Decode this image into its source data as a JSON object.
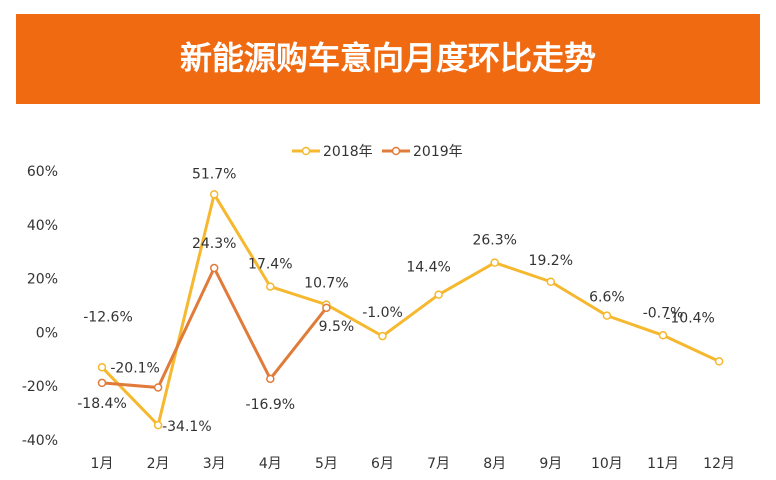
{
  "chart_data": {
    "type": "line",
    "title": "新能源购车意向月度环比走势",
    "categories": [
      "1月",
      "2月",
      "3月",
      "4月",
      "5月",
      "6月",
      "7月",
      "8月",
      "9月",
      "10月",
      "11月",
      "12月"
    ],
    "series": [
      {
        "name": "2018年",
        "color": "#f5b82e",
        "values": [
          -12.6,
          -34.1,
          51.7,
          17.4,
          10.7,
          -1.0,
          14.4,
          26.3,
          19.2,
          6.6,
          -0.7,
          -10.4
        ],
        "value_labels": [
          "-12.6%",
          "-34.1%",
          "51.7%",
          "17.4%",
          "10.7%",
          "-1.0%",
          "14.4%",
          "26.3%",
          "19.2%",
          "6.6%",
          "-0.7%",
          "-10.4%"
        ]
      },
      {
        "name": "2019年",
        "color": "#e07b39",
        "values": [
          -18.4,
          -20.1,
          24.3,
          -16.9,
          9.5,
          null,
          null,
          null,
          null,
          null,
          null,
          null
        ],
        "value_labels": [
          "-18.4%",
          "-20.1%",
          "24.3%",
          "-16.9%",
          "9.5%",
          null,
          null,
          null,
          null,
          null,
          null,
          null
        ]
      }
    ],
    "ylim": [
      -40,
      60
    ],
    "yticks": [
      {
        "value": -40,
        "label": "-40%"
      },
      {
        "value": -20,
        "label": "-20%"
      },
      {
        "value": 0,
        "label": "0%"
      },
      {
        "value": 20,
        "label": "20%"
      },
      {
        "value": 40,
        "label": "40%"
      },
      {
        "value": 60,
        "label": "60%"
      }
    ],
    "grid": false
  }
}
